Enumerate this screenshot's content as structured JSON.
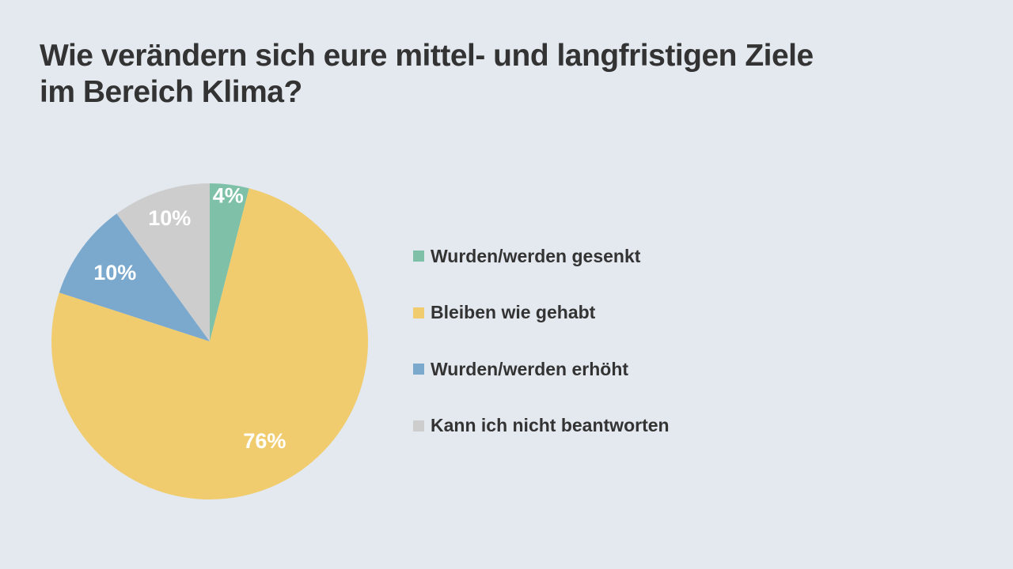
{
  "slide": {
    "title_line1": "Wie verändern sich eure mittel- und langfristigen Ziele",
    "title_line2": "im Bereich Klima?",
    "background": "#e3e9ef"
  },
  "chart_data": {
    "type": "pie",
    "title": "Wie verändern sich eure mittel- und langfristigen Ziele im Bereich Klima?",
    "start_angle": "12 o'clock",
    "direction": "clockwise",
    "legend_position": "right",
    "slices": [
      {
        "label": "Wurden/werden gesenkt",
        "value": 4,
        "display": "4%",
        "color": "#7fc1a8"
      },
      {
        "label": "Bleiben wie gehabt",
        "value": 76,
        "display": "76%",
        "color": "#f0cc6e"
      },
      {
        "label": "Wurden/werden erhöht",
        "value": 10,
        "display": "10%",
        "color": "#7ba9ce"
      },
      {
        "label": "Kann ich nicht beantworten",
        "value": 10,
        "display": "10%",
        "color": "#cdcdcd"
      }
    ]
  }
}
